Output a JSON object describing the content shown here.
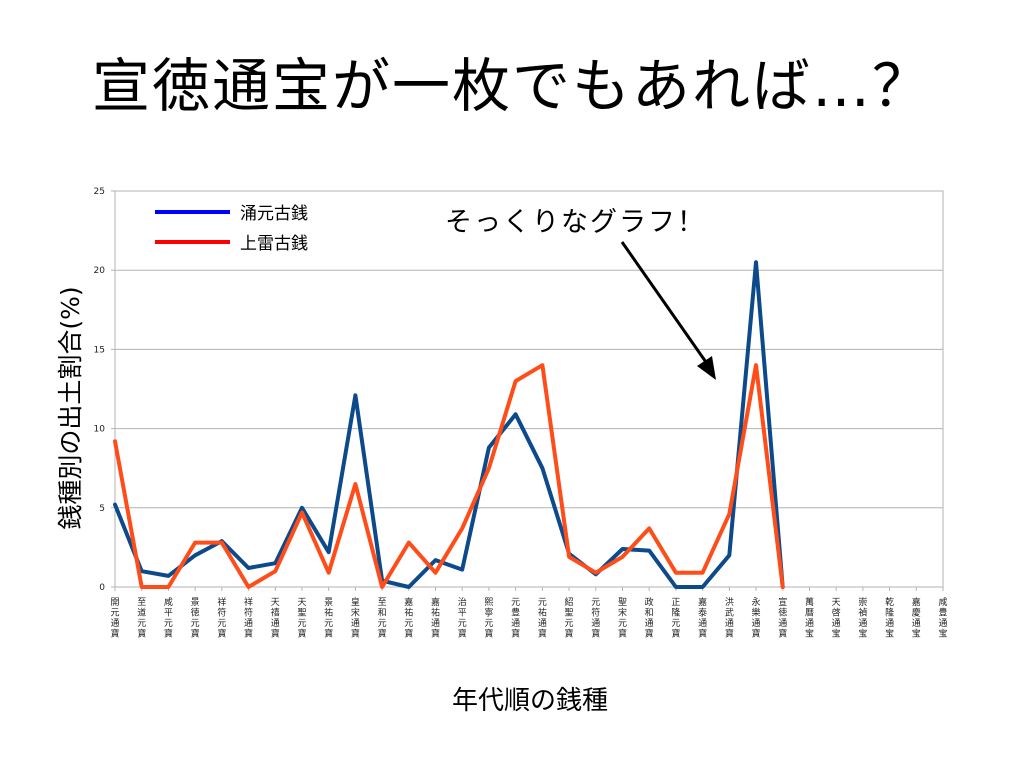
{
  "slide": {
    "title": "宣徳通宝が一枚でもあれば…？",
    "annotation": "そっくりなグラフ！"
  },
  "chart_data": {
    "type": "line",
    "ylabel": "銭種別の出土割合(%)",
    "xlabel": "年代順の銭種",
    "ylim": [
      0,
      25
    ],
    "yticks": [
      0,
      5,
      10,
      15,
      20,
      25
    ],
    "grid": true,
    "legend_position": "top-left",
    "categories": [
      "開元通寶",
      "至道元寶",
      "咸平元寶",
      "景徳元寶",
      "祥符元寶",
      "祥符通寶",
      "天禧通寶",
      "天聖元寶",
      "景祐元寶",
      "皇宋通寶",
      "至和元寶",
      "嘉祐元寶",
      "嘉祐通寶",
      "治平元寶",
      "熙寧元寶",
      "元豊通寶",
      "元祐通寶",
      "紹聖元寶",
      "元符通寶",
      "聖宋元寶",
      "政和通寶",
      "正隆元寶",
      "嘉泰通寶",
      "洪武通寶",
      "永樂通寶",
      "宣徳通寶",
      "萬曆通宝",
      "天啓通宝",
      "崇禎通宝",
      "乾隆通宝",
      "嘉慶通宝",
      "咸豊通宝"
    ],
    "series": [
      {
        "name": "涌元古銭",
        "color": "#0d4a8c",
        "values": [
          5.2,
          1.0,
          0.7,
          2.0,
          2.9,
          1.2,
          1.5,
          5.0,
          2.2,
          12.1,
          0.4,
          0.0,
          1.7,
          1.1,
          8.8,
          10.9,
          7.5,
          2.1,
          0.8,
          2.4,
          2.3,
          0.0,
          0.0,
          2.0,
          20.5,
          0.0,
          null,
          null,
          null,
          null,
          null,
          null
        ]
      },
      {
        "name": "上雷古銭",
        "color": "#ff4d1a",
        "values": [
          9.2,
          0.0,
          0.0,
          2.8,
          2.8,
          0.0,
          1.0,
          4.7,
          0.9,
          6.5,
          0.0,
          2.8,
          0.9,
          3.7,
          7.5,
          13.0,
          14.0,
          1.9,
          0.9,
          1.9,
          3.7,
          0.9,
          0.9,
          4.6,
          14.0,
          0.0,
          null,
          null,
          null,
          null,
          null,
          null
        ]
      }
    ]
  }
}
